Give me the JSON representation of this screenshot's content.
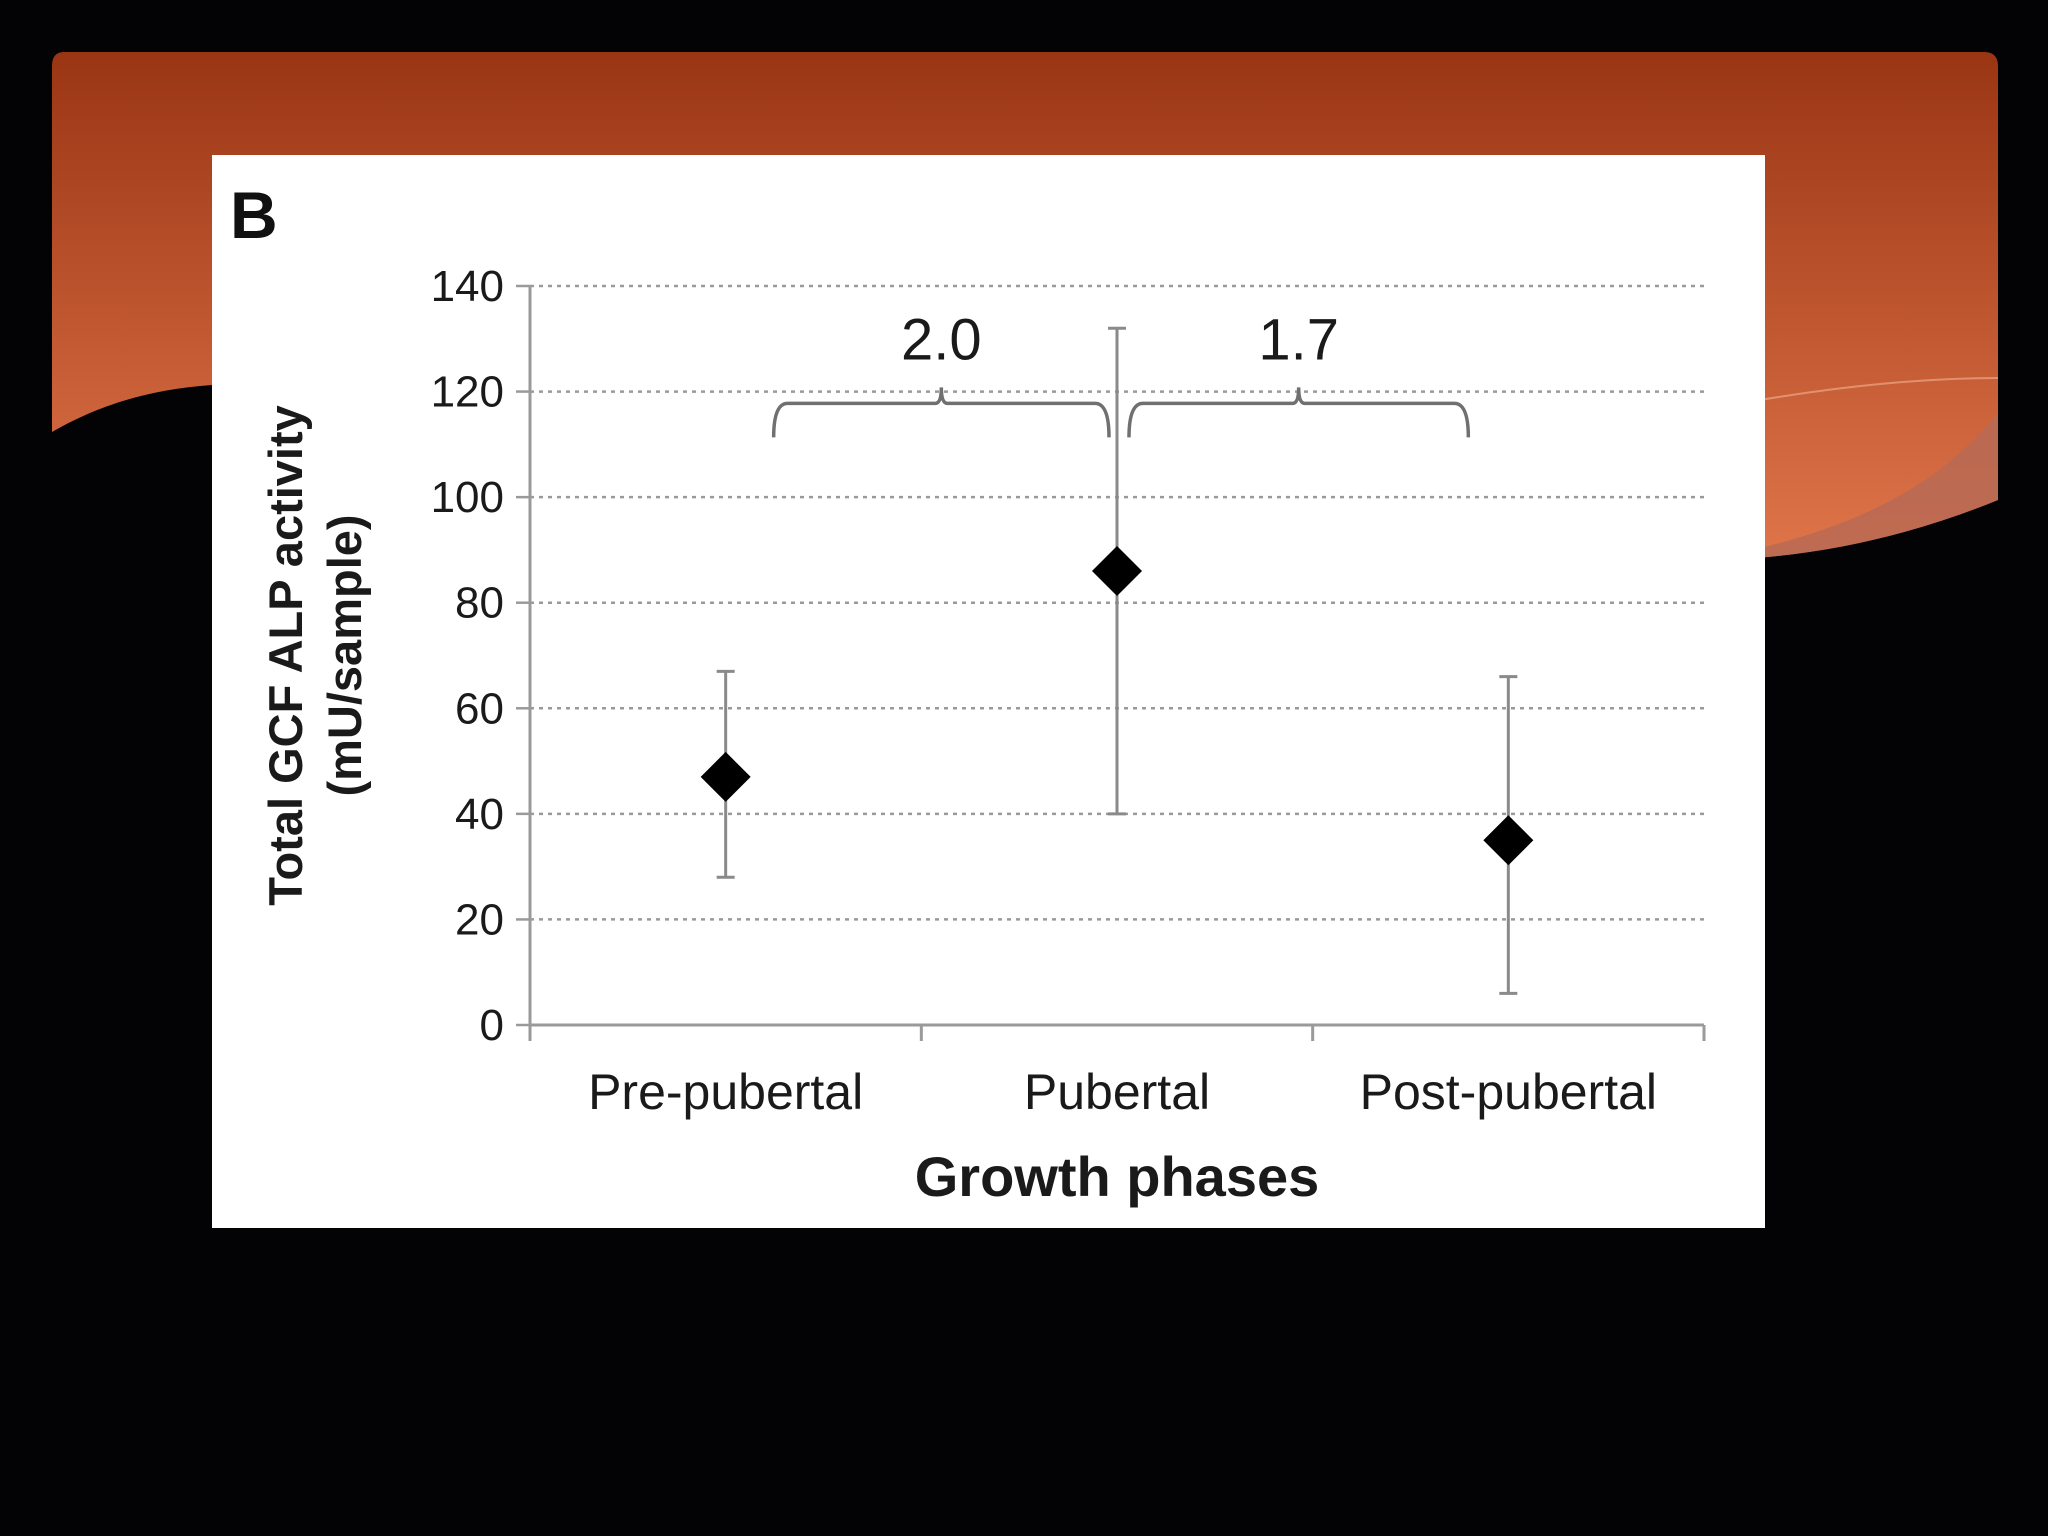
{
  "slide": {
    "header_gradient": [
      "#9a3514",
      "#e0754a"
    ],
    "background": "#030204"
  },
  "figure": {
    "panel_label": "B"
  },
  "chart_data": {
    "type": "scatter",
    "categories": [
      "Pre-pubertal",
      "Pubertal",
      "Post-pubertal"
    ],
    "values": [
      47,
      86,
      35
    ],
    "error_low": [
      28,
      40,
      6
    ],
    "error_high": [
      67,
      132,
      66
    ],
    "title": "",
    "xlabel": "Growth phases",
    "ylabel_lines": [
      "Total GCF ALP activity",
      "(mU/sample)"
    ],
    "ylim": [
      0,
      140
    ],
    "yticks": [
      0,
      20,
      40,
      60,
      80,
      100,
      120,
      140
    ],
    "ytick_labels": [
      "0",
      "20",
      "40",
      "60",
      "80",
      "100",
      "120",
      "140"
    ],
    "grid": true,
    "marker": "diamond",
    "marker_color": "#000000",
    "annotations": [
      {
        "label": "2.0",
        "from": 0,
        "to": 1,
        "y": 117
      },
      {
        "label": "1.7",
        "from": 1,
        "to": 2,
        "y": 117
      }
    ]
  }
}
